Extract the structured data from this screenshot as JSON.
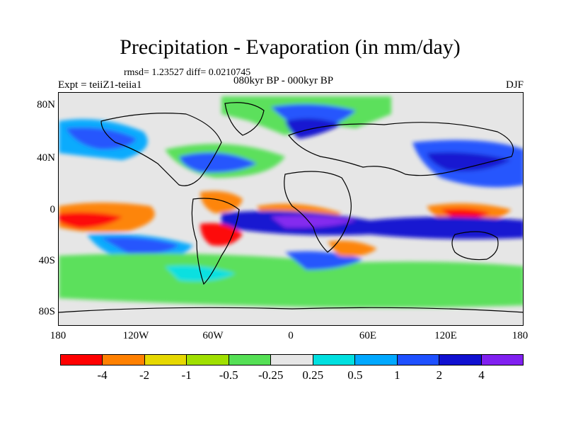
{
  "title": "Precipitation - Evaporation (in mm/day)",
  "stats": "rmsd= 1.23527 diff= 0.0210745",
  "experiment": "Expt = teiiZ1-teiia1",
  "period": "080kyr BP - 000kyr BP",
  "season": "DJF",
  "axes": {
    "y_labels": [
      "80N",
      "40N",
      "0",
      "40S",
      "80S"
    ],
    "x_labels": [
      "180",
      "120W",
      "60W",
      "0",
      "60E",
      "120E",
      "180"
    ]
  },
  "colorbar": {
    "colors": [
      "#ff0000",
      "#ff8000",
      "#e6d800",
      "#a0e000",
      "#55e055",
      "#e6e6e6",
      "#00e0e0",
      "#00a8ff",
      "#1e50ff",
      "#1010d0",
      "#8020f0"
    ],
    "labels": [
      "-4",
      "-2",
      "-1",
      "-0.5",
      "-0.25",
      "0.25",
      "0.5",
      "1",
      "2",
      "4"
    ]
  }
}
